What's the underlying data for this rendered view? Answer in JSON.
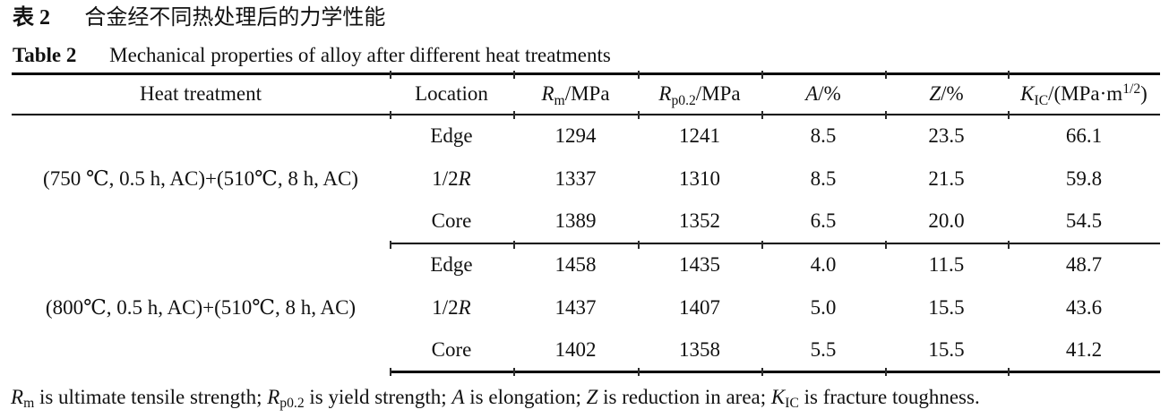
{
  "captions": {
    "zh": [
      {
        "t": "表 2",
        "s": "b"
      },
      {
        "t": "合金经不同热处理后的力学性能"
      }
    ],
    "en": [
      {
        "t": "Table 2",
        "s": "b"
      },
      {
        "t": "Mechanical properties of alloy after different heat treatments"
      }
    ]
  },
  "table": {
    "columns": [
      [
        {
          "t": "Heat treatment"
        }
      ],
      [
        {
          "t": "Location"
        }
      ],
      [
        {
          "t": "R",
          "s": "i"
        },
        {
          "t": "m",
          "s": "sub"
        },
        {
          "t": "/MPa"
        }
      ],
      [
        {
          "t": "R",
          "s": "i"
        },
        {
          "t": "p0.2",
          "s": "sub"
        },
        {
          "t": "/MPa"
        }
      ],
      [
        {
          "t": "A",
          "s": "i"
        },
        {
          "t": "/%"
        }
      ],
      [
        {
          "t": "Z",
          "s": "i"
        },
        {
          "t": "/%"
        }
      ],
      [
        {
          "t": "K",
          "s": "i"
        },
        {
          "t": "IC",
          "s": "sub"
        },
        {
          "t": "/(MPa·m"
        },
        {
          "t": "1/2",
          "s": "sup"
        },
        {
          "t": ")"
        }
      ]
    ],
    "groups": [
      {
        "treatment": "(750 ℃, 0.5 h, AC)+(510℃, 8 h, AC)",
        "rows": [
          {
            "location": [
              {
                "t": "Edge"
              }
            ],
            "values": [
              "1294",
              "1241",
              "8.5",
              "23.5",
              "66.1"
            ]
          },
          {
            "location": [
              {
                "t": "1/2"
              },
              {
                "t": "R",
                "s": "i"
              }
            ],
            "values": [
              "1337",
              "1310",
              "8.5",
              "21.5",
              "59.8"
            ]
          },
          {
            "location": [
              {
                "t": "Core"
              }
            ],
            "values": [
              "1389",
              "1352",
              "6.5",
              "20.0",
              "54.5"
            ]
          }
        ]
      },
      {
        "treatment": "(800℃, 0.5 h, AC)+(510℃, 8 h, AC)",
        "rows": [
          {
            "location": [
              {
                "t": "Edge"
              }
            ],
            "values": [
              "1458",
              "1435",
              "4.0",
              "11.5",
              "48.7"
            ]
          },
          {
            "location": [
              {
                "t": "1/2"
              },
              {
                "t": "R",
                "s": "i"
              }
            ],
            "values": [
              "1437",
              "1407",
              "5.0",
              "15.5",
              "43.6"
            ]
          },
          {
            "location": [
              {
                "t": "Core"
              }
            ],
            "values": [
              "1402",
              "1358",
              "5.5",
              "15.5",
              "41.2"
            ]
          }
        ]
      }
    ]
  },
  "footnote": [
    {
      "t": "R",
      "s": "i"
    },
    {
      "t": "m",
      "s": "sub"
    },
    {
      "t": " is ultimate tensile strength; "
    },
    {
      "t": "R",
      "s": "i"
    },
    {
      "t": "p0.2",
      "s": "sub"
    },
    {
      "t": " is yield strength; "
    },
    {
      "t": "A",
      "s": "i"
    },
    {
      "t": " is elongation; "
    },
    {
      "t": "Z",
      "s": "i"
    },
    {
      "t": " is reduction in area; "
    },
    {
      "t": "K",
      "s": "i"
    },
    {
      "t": "IC",
      "s": "sub"
    },
    {
      "t": " is fracture toughness."
    }
  ]
}
